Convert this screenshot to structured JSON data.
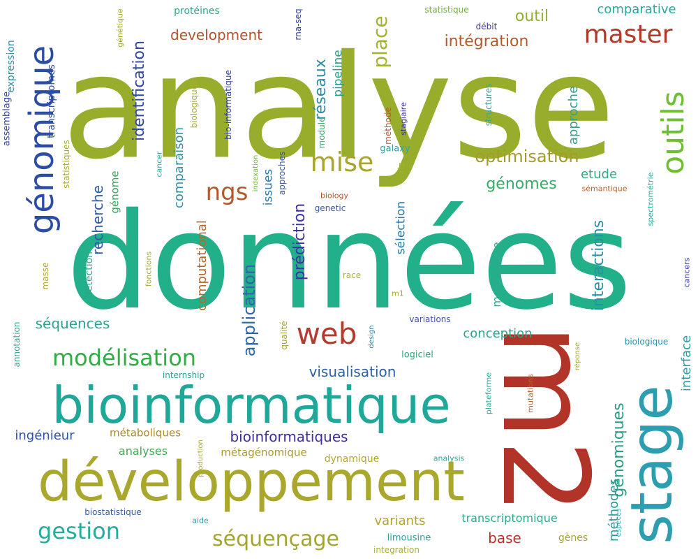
{
  "word_cloud": {
    "words": [
      {
        "text": "analyse",
        "color": "#99ad2c"
      },
      {
        "text": "données",
        "color": "#22b08a"
      },
      {
        "text": "m2",
        "color": "#b23327"
      },
      {
        "text": "développement",
        "color": "#a9a82c"
      },
      {
        "text": "bioinformatique",
        "color": "#1fa899"
      },
      {
        "text": "stage",
        "color": "#2d9eb0"
      },
      {
        "text": "génomique",
        "color": "#2c4da6"
      },
      {
        "text": "outils",
        "color": "#6ebf31"
      },
      {
        "text": "master",
        "color": "#b23a27"
      },
      {
        "text": "mise",
        "color": "#aaa52e"
      },
      {
        "text": "ngs",
        "color": "#b3582a"
      },
      {
        "text": "web",
        "color": "#b53b2f"
      },
      {
        "text": "modélisation",
        "color": "#32ad45"
      },
      {
        "text": "gestion",
        "color": "#23ad9a"
      },
      {
        "text": "séquençage",
        "color": "#a3a62e"
      },
      {
        "text": "place",
        "color": "#a4b22f"
      },
      {
        "text": "outil",
        "color": "#8fb02c"
      },
      {
        "text": "comparative",
        "color": "#27a99b"
      },
      {
        "text": "identification",
        "color": "#30479e"
      },
      {
        "text": "optimisation",
        "color": "#a69a2e"
      },
      {
        "text": "réseaux",
        "color": "#2a8da6"
      },
      {
        "text": "intégration",
        "color": "#b5592a"
      },
      {
        "text": "development",
        "color": "#b3532c"
      },
      {
        "text": "génomes",
        "color": "#37ac63"
      },
      {
        "text": "application",
        "color": "#2f65aa"
      },
      {
        "text": "prédiction",
        "color": "#3d32a4"
      },
      {
        "text": "interactions",
        "color": "#2692a6"
      },
      {
        "text": "génomiques",
        "color": "#2c9c89"
      },
      {
        "text": "visualisation",
        "color": "#2d5fa6"
      },
      {
        "text": "bioinformatiques",
        "color": "#3b2fa0"
      },
      {
        "text": "séquences",
        "color": "#2ba391"
      },
      {
        "text": "computational",
        "color": "#b6682b"
      },
      {
        "text": "recherche",
        "color": "#2c5aa8"
      },
      {
        "text": "comparaison",
        "color": "#3390a6"
      },
      {
        "text": "approche",
        "color": "#37a08f"
      },
      {
        "text": "etude",
        "color": "#31a98a"
      },
      {
        "text": "conception",
        "color": "#2aa28c"
      },
      {
        "text": "interface",
        "color": "#2a9cae"
      },
      {
        "text": "méthodes",
        "color": "#2c9a9a"
      },
      {
        "text": "base",
        "color": "#b53228"
      },
      {
        "text": "variants",
        "color": "#b0a42c"
      },
      {
        "text": "transcriptomique",
        "color": "#2ea78e"
      },
      {
        "text": "ingénieur",
        "color": "#2c51a6"
      },
      {
        "text": "analyses",
        "color": "#3faa53"
      },
      {
        "text": "métaboliques",
        "color": "#a88a2c"
      },
      {
        "text": "métagénomique",
        "color": "#a9992f"
      },
      {
        "text": "dynamique",
        "color": "#b3a82f"
      },
      {
        "text": "moléculaire",
        "color": "#2faa8e"
      },
      {
        "text": "sélection",
        "color": "#2c79a6"
      },
      {
        "text": "issues",
        "color": "#2e7aa8"
      },
      {
        "text": "pipeline",
        "color": "#2c9a88"
      },
      {
        "text": "génome",
        "color": "#35a45d"
      },
      {
        "text": "détection",
        "color": "#2ba58b"
      },
      {
        "text": "protéines",
        "color": "#2fa888"
      },
      {
        "text": "statistique",
        "color": "#6fb233"
      },
      {
        "text": "expression",
        "color": "#2d8ea6"
      },
      {
        "text": "génétique",
        "color": "#a6a833"
      },
      {
        "text": "transcriptomes",
        "color": "#2c4fa3"
      },
      {
        "text": "assemblage",
        "color": "#34499e"
      },
      {
        "text": "statistiques",
        "color": "#a7ad2f"
      },
      {
        "text": "biologiques",
        "color": "#a8ad33"
      },
      {
        "text": "bio-informatique",
        "color": "#2c3fa0"
      },
      {
        "text": "cancer",
        "color": "#31a6a0"
      },
      {
        "text": "masse",
        "color": "#b3a22e"
      },
      {
        "text": "fonctions",
        "color": "#aaa932"
      },
      {
        "text": "annotation",
        "color": "#34a59b"
      },
      {
        "text": "rna-seq",
        "color": "#2e3c9c"
      },
      {
        "text": "débit",
        "color": "#3d34a0"
      },
      {
        "text": "méthode",
        "color": "#b2582f"
      },
      {
        "text": "stagiaire",
        "color": "#3a32a0"
      },
      {
        "text": "structures",
        "color": "#33a8a0"
      },
      {
        "text": "galaxy",
        "color": "#2fa2b3"
      },
      {
        "text": "riz",
        "color": "#a8ad33"
      },
      {
        "text": "module",
        "color": "#3ba86b"
      },
      {
        "text": "approches",
        "color": "#3a56a8"
      },
      {
        "text": "indexation",
        "color": "#6db43a"
      },
      {
        "text": "qualité",
        "color": "#a8a22f"
      },
      {
        "text": "biology",
        "color": "#b3582f"
      },
      {
        "text": "genetic",
        "color": "#3a5cab"
      },
      {
        "text": "sémantique",
        "color": "#b5622f"
      },
      {
        "text": "spectrométrie",
        "color": "#2fa8a0"
      },
      {
        "text": "race",
        "color": "#abad37"
      },
      {
        "text": "m1",
        "color": "#a8ad33"
      },
      {
        "text": "cancers",
        "color": "#3b3aa2"
      },
      {
        "text": "variations",
        "color": "#3a4fa8"
      },
      {
        "text": "design",
        "color": "#2f83a8"
      },
      {
        "text": "logiciel",
        "color": "#34a57e"
      },
      {
        "text": "biologique",
        "color": "#2c8eb0"
      },
      {
        "text": "réponse",
        "color": "#a8ad33"
      },
      {
        "text": "internship",
        "color": "#31a09b"
      },
      {
        "text": "plateforme",
        "color": "#2fa8a0"
      },
      {
        "text": "mutations",
        "color": "#b3662f"
      },
      {
        "text": "production",
        "color": "#a8ad33"
      },
      {
        "text": "analysis",
        "color": "#31a08f"
      },
      {
        "text": "biostatistique",
        "color": "#2f5ca8"
      },
      {
        "text": "aide",
        "color": "#2fa0a8"
      },
      {
        "text": "espèces",
        "color": "#2fa8b3"
      },
      {
        "text": "gènes",
        "color": "#a9a236"
      },
      {
        "text": "limousine",
        "color": "#31a09b"
      },
      {
        "text": "integration",
        "color": "#a8ad33"
      }
    ]
  }
}
